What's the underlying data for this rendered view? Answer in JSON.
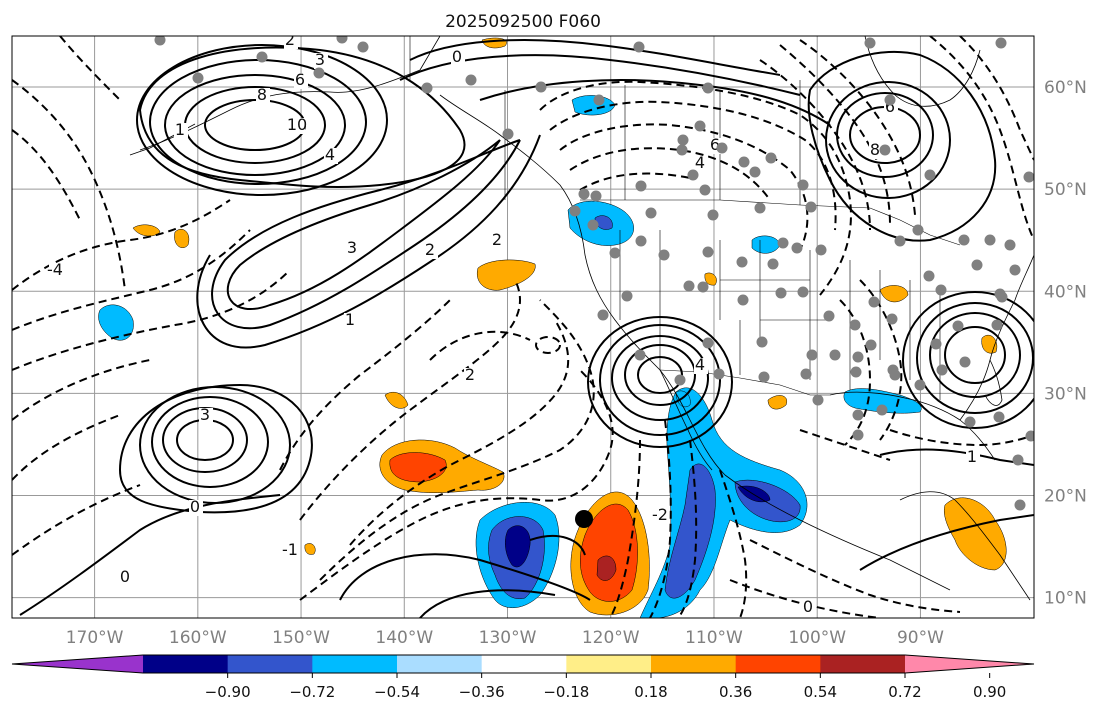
{
  "title": "2025092500 F060",
  "map": {
    "lon_range": [
      -178,
      -79
    ],
    "lat_range": [
      8,
      65
    ],
    "lon_labels": [
      "170°W",
      "160°W",
      "150°W",
      "140°W",
      "130°W",
      "120°W",
      "110°W",
      "100°W",
      "90°W"
    ],
    "lat_labels": [
      "60°N",
      "50°N",
      "40°N",
      "30°N",
      "20°N",
      "10°N"
    ],
    "gridlines": true
  },
  "colorbar": {
    "tick_labels": [
      "−0.90",
      "−0.72",
      "−0.54",
      "−0.36",
      "−0.18",
      "0.18",
      "0.36",
      "0.54",
      "0.72",
      "0.90"
    ],
    "colors": [
      "#9933cc",
      "#000088",
      "#3355cc",
      "#00bbff",
      "#aaddff",
      "#ffffff",
      "#ffee88",
      "#ffaa00",
      "#ff4400",
      "#aa2222",
      "#ff88aa"
    ],
    "extend": "both"
  },
  "contour_labels": [
    {
      "text": "8"
    },
    {
      "text": "10"
    },
    {
      "text": "6"
    },
    {
      "text": "3"
    },
    {
      "text": "4"
    },
    {
      "text": "2"
    },
    {
      "text": "1"
    },
    {
      "text": "0"
    },
    {
      "text": "4"
    },
    {
      "text": "6"
    },
    {
      "text": "8"
    },
    {
      "text": "3"
    },
    {
      "text": "2"
    },
    {
      "text": "1"
    },
    {
      "text": "3"
    },
    {
      "text": "-1"
    },
    {
      "text": "0"
    },
    {
      "text": "2"
    },
    {
      "text": "-4"
    },
    {
      "text": "6"
    },
    {
      "text": "4"
    },
    {
      "text": "2"
    },
    {
      "text": "0"
    },
    {
      "text": "-2"
    },
    {
      "text": "1"
    },
    {
      "text": "0"
    }
  ]
}
